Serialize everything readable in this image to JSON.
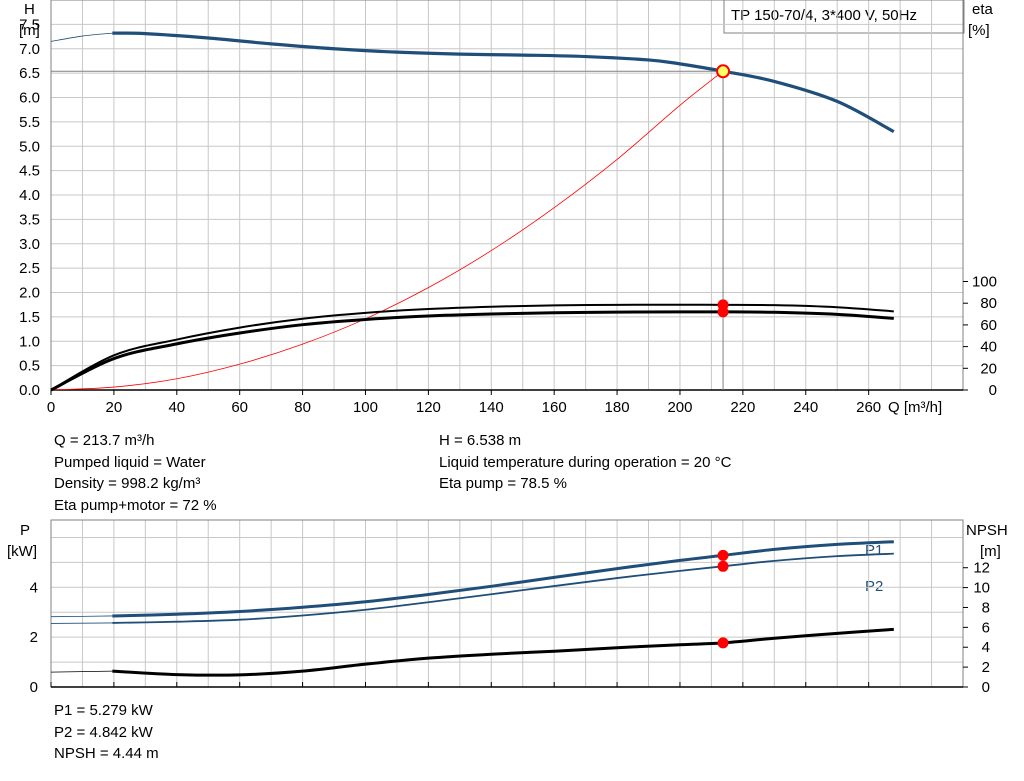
{
  "title_box": "TP 150-70/4, 3*400 V, 50Hz",
  "top_chart": {
    "left_axis_label": [
      "H",
      "[m]"
    ],
    "right_axis_label": [
      "eta",
      "[%]"
    ],
    "x_axis_label": "Q [m³/h]"
  },
  "bottom_chart": {
    "left_axis_label": [
      "P",
      "[kW]"
    ],
    "right_axis_label": [
      "NPSH",
      "[m]"
    ],
    "curve_labels": {
      "p1": "P1",
      "p2": "P2"
    }
  },
  "info_top_left": [
    "Q = 213.7 m³/h",
    "Pumped liquid = Water",
    "Density = 998.2 kg/m³",
    "Eta pump+motor = 72 %"
  ],
  "info_top_right": [
    "H = 6.538 m",
    "Liquid temperature during operation = 20 °C",
    "Eta pump = 78.5 %"
  ],
  "info_bottom": [
    "P1 = 5.279 kW",
    "P2 = 4.842 kW",
    "NPSH = 4.44 m"
  ],
  "colors": {
    "head": "#1f4e79",
    "power": "#1f4e79",
    "system": "#ff0000",
    "eff": "#000000",
    "marker": "#ff0000",
    "duty_fill": "#ffff66",
    "grid": "#c8c8c8"
  },
  "chart_data": [
    {
      "type": "line",
      "title": "TP 150-70/4, 3*400 V, 50Hz",
      "xlabel": "Q [m³/h]",
      "ylabel": "H [m]",
      "y2label": "eta [%]",
      "xlim": [
        0,
        290
      ],
      "ylim": [
        0,
        8.0
      ],
      "y2lim": [
        0,
        100
      ],
      "xticks": [
        0,
        20,
        40,
        60,
        80,
        100,
        120,
        140,
        160,
        180,
        200,
        220,
        240,
        260
      ],
      "yticks": [
        0,
        0.5,
        1.0,
        1.5,
        2.0,
        2.5,
        3.0,
        3.5,
        4.0,
        4.5,
        5.0,
        5.5,
        6.0,
        6.5,
        7.0,
        7.5
      ],
      "y2ticks": [
        0,
        20,
        40,
        60,
        80,
        100
      ],
      "grid": true,
      "series": [
        {
          "key": "head_ext",
          "axis": "left",
          "x": [
            0,
            10,
            19.5
          ],
          "y": [
            7.15,
            7.26,
            7.32
          ]
        },
        {
          "key": "head",
          "axis": "left",
          "x": [
            19.5,
            30,
            50,
            70,
            90,
            110,
            130,
            150,
            170,
            190,
            200,
            213.7,
            230,
            250,
            268
          ],
          "y": [
            7.32,
            7.31,
            7.22,
            7.1,
            7.0,
            6.93,
            6.89,
            6.87,
            6.84,
            6.77,
            6.69,
            6.54,
            6.33,
            5.92,
            5.3
          ]
        },
        {
          "key": "system",
          "axis": "left",
          "x": [
            0,
            20,
            40,
            60,
            80,
            100,
            120,
            140,
            160,
            180,
            200,
            213.7
          ],
          "y": [
            0,
            0.06,
            0.23,
            0.53,
            0.94,
            1.46,
            2.1,
            2.86,
            3.74,
            4.73,
            5.84,
            6.54
          ]
        },
        {
          "key": "eta_pump",
          "axis": "right",
          "x": [
            0,
            20,
            40,
            60,
            80,
            100,
            120,
            140,
            160,
            180,
            200,
            213.7,
            230,
            250,
            268
          ],
          "y": [
            0,
            32,
            46.5,
            57.5,
            65.7,
            71.1,
            74.6,
            76.7,
            78.0,
            78.5,
            78.6,
            78.5,
            78.2,
            76.3,
            72.5
          ]
        },
        {
          "key": "eta_total",
          "axis": "right",
          "x": [
            0,
            20,
            40,
            60,
            80,
            100,
            120,
            140,
            160,
            180,
            200,
            213.7,
            230,
            250,
            268
          ],
          "y": [
            0,
            29,
            42.5,
            52.5,
            60.2,
            65.0,
            68.2,
            70.0,
            71.2,
            71.8,
            72.0,
            72.0,
            71.6,
            69.7,
            66.0
          ]
        }
      ],
      "operating_point": {
        "q": 213.7,
        "h": 6.538,
        "eta_pump": 78.5,
        "eta_total": 72
      }
    },
    {
      "type": "line",
      "ylabel": "P [kW]",
      "y2label": "NPSH [m]",
      "xlim": [
        0,
        290
      ],
      "ylim": [
        0,
        6.7
      ],
      "y2lim": [
        0,
        16.8
      ],
      "yticks": [
        0,
        2,
        4
      ],
      "y2ticks": [
        0,
        2,
        4,
        6,
        8,
        10,
        12
      ],
      "grid": true,
      "series": [
        {
          "key": "p1",
          "name": "P1",
          "axis": "left",
          "x": [
            0,
            19.5,
            40,
            60,
            80,
            100,
            120,
            140,
            160,
            180,
            200,
            213.7,
            230,
            250,
            268
          ],
          "y": [
            2.82,
            2.85,
            2.92,
            3.03,
            3.2,
            3.42,
            3.71,
            4.04,
            4.4,
            4.75,
            5.08,
            5.279,
            5.52,
            5.72,
            5.83
          ]
        },
        {
          "key": "p2",
          "name": "P2",
          "axis": "left",
          "x": [
            0,
            19.5,
            40,
            60,
            80,
            100,
            120,
            140,
            160,
            180,
            200,
            213.7,
            230,
            250,
            268
          ],
          "y": [
            2.55,
            2.57,
            2.62,
            2.7,
            2.87,
            3.1,
            3.4,
            3.72,
            4.05,
            4.37,
            4.66,
            4.842,
            5.06,
            5.25,
            5.35
          ]
        },
        {
          "key": "npsh",
          "axis": "right",
          "x": [
            0,
            19.5,
            40,
            60,
            80,
            100,
            120,
            140,
            160,
            180,
            200,
            213.7,
            230,
            250,
            268
          ],
          "y": [
            1.5,
            1.6,
            1.25,
            1.22,
            1.6,
            2.3,
            2.9,
            3.3,
            3.6,
            3.95,
            4.25,
            4.44,
            4.9,
            5.4,
            5.8
          ]
        }
      ],
      "operating_point": {
        "q": 213.7,
        "p1": 5.279,
        "p2": 4.842,
        "npsh": 4.44
      }
    }
  ]
}
